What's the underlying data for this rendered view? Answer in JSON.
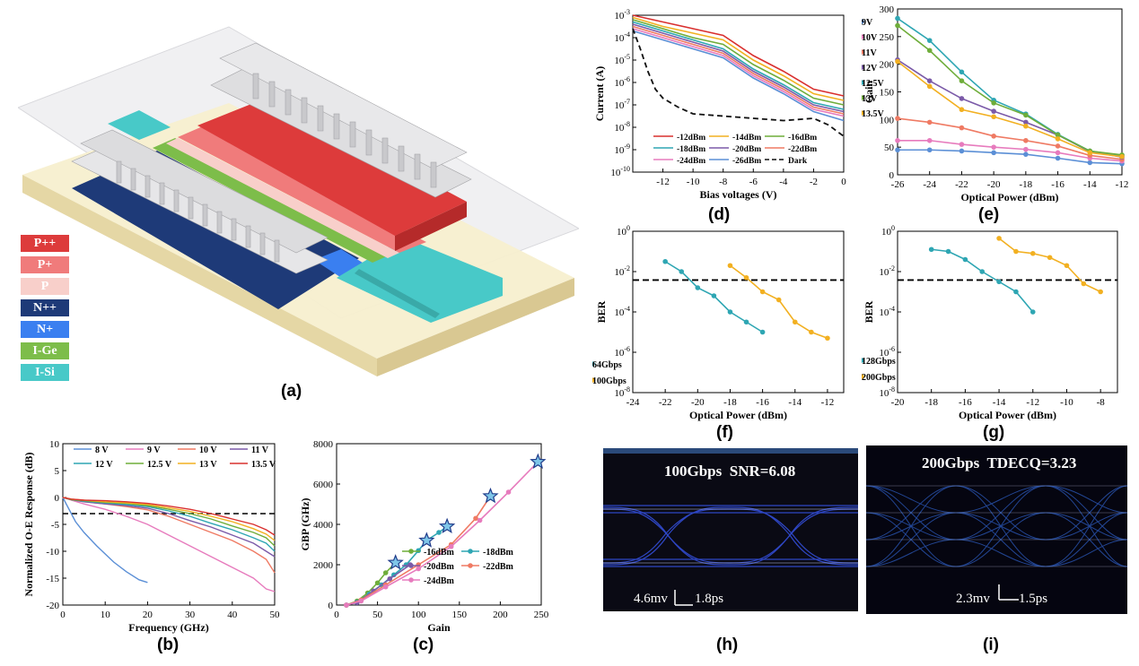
{
  "figure": {
    "captions": {
      "a": "(a)",
      "b": "(b)",
      "c": "(c)",
      "d": "(d)",
      "e": "(e)",
      "f": "(f)",
      "g": "(g)",
      "h": "(h)",
      "i": "(i)"
    },
    "layer_legend": [
      {
        "label": "P++",
        "color": "#dd3b3b"
      },
      {
        "label": "P+",
        "color": "#f07b7b"
      },
      {
        "label": "P",
        "color": "#f8cfca"
      },
      {
        "label": "N++",
        "color": "#1e3a78"
      },
      {
        "label": "N+",
        "color": "#3a7ff0"
      },
      {
        "label": "I-Ge",
        "color": "#7dbd4a"
      },
      {
        "label": "I-Si",
        "color": "#48c9c8"
      }
    ],
    "eye_h": {
      "title": "100Gbps  SNR=6.08",
      "v_scale": "4.6mv",
      "t_scale": "1.8ps"
    },
    "eye_i": {
      "title": "200Gbps  TDECQ=3.23",
      "v_scale": "2.3mv",
      "t_scale": "1.5ps"
    }
  },
  "chart_data": [
    {
      "id": "b",
      "type": "line",
      "xlabel": "Frequency (GHz)",
      "ylabel": "Normalized O-E Response (dB)",
      "xlim": [
        0,
        50
      ],
      "ylim": [
        -20,
        10
      ],
      "xticks": [
        0,
        10,
        20,
        30,
        40,
        50
      ],
      "yticks": [
        -20,
        -15,
        -10,
        -5,
        0,
        5,
        10
      ],
      "reference_line_db": -3,
      "series": [
        {
          "name": "8 V",
          "color": "#5b8fd6",
          "x": [
            0,
            1,
            2,
            3,
            5,
            8,
            10,
            12,
            15,
            18,
            20
          ],
          "y": [
            0,
            -1.5,
            -3,
            -4.5,
            -6.5,
            -9,
            -10.5,
            -12,
            -13.8,
            -15.3,
            -15.8
          ]
        },
        {
          "name": "9 V",
          "color": "#e77bbd",
          "x": [
            0,
            2,
            5,
            10,
            15,
            20,
            25,
            30,
            35,
            40,
            45,
            48,
            50
          ],
          "y": [
            0,
            -0.5,
            -1.2,
            -2.2,
            -3.5,
            -5,
            -7,
            -9,
            -11,
            -13,
            -15,
            -17,
            -17.5
          ]
        },
        {
          "name": "10 V",
          "color": "#ef7a63",
          "x": [
            0,
            2,
            5,
            10,
            15,
            20,
            25,
            30,
            35,
            40,
            45,
            48,
            50
          ],
          "y": [
            0,
            -0.4,
            -0.8,
            -1.2,
            -1.7,
            -2.3,
            -3.5,
            -5,
            -6.5,
            -8,
            -10,
            -11.5,
            -14
          ]
        },
        {
          "name": "11 V",
          "color": "#7b5aa8",
          "x": [
            0,
            2,
            5,
            10,
            15,
            20,
            25,
            30,
            35,
            40,
            45,
            48,
            50
          ],
          "y": [
            0,
            -0.4,
            -0.8,
            -1.2,
            -1.5,
            -2,
            -3,
            -4.3,
            -5.5,
            -7,
            -8.5,
            -10,
            -11
          ]
        },
        {
          "name": "12 V",
          "color": "#2ea6b3",
          "x": [
            0,
            2,
            5,
            10,
            15,
            20,
            25,
            30,
            35,
            40,
            45,
            48,
            50
          ],
          "y": [
            0,
            -0.4,
            -0.7,
            -1,
            -1.3,
            -1.7,
            -2.5,
            -3.5,
            -4.8,
            -6,
            -7.5,
            -8.5,
            -10
          ]
        },
        {
          "name": "12.5 V",
          "color": "#6fad3a",
          "x": [
            0,
            2,
            5,
            10,
            15,
            20,
            25,
            30,
            35,
            40,
            45,
            48,
            50
          ],
          "y": [
            0,
            -0.4,
            -0.6,
            -0.9,
            -1.1,
            -1.5,
            -2.2,
            -3,
            -4,
            -5.3,
            -6.5,
            -7.5,
            -9
          ]
        },
        {
          "name": "13 V",
          "color": "#f2b021",
          "x": [
            0,
            2,
            5,
            10,
            15,
            20,
            25,
            30,
            35,
            40,
            45,
            48,
            50
          ],
          "y": [
            0,
            -0.3,
            -0.5,
            -0.8,
            -1,
            -1.3,
            -1.9,
            -2.6,
            -3.5,
            -4.5,
            -5.8,
            -6.8,
            -8
          ]
        },
        {
          "name": "13.5 V",
          "color": "#d9302f",
          "x": [
            0,
            2,
            5,
            10,
            15,
            20,
            25,
            30,
            35,
            40,
            45,
            48,
            50
          ],
          "y": [
            0,
            -0.3,
            -0.5,
            -0.6,
            -0.8,
            -1.1,
            -1.6,
            -2.2,
            -3,
            -4,
            -5,
            -6,
            -7
          ]
        }
      ]
    },
    {
      "id": "c",
      "type": "line",
      "xlabel": "Gain",
      "ylabel": "GBP (GHz)",
      "xlim": [
        0,
        250
      ],
      "ylim": [
        0,
        8000
      ],
      "xticks": [
        0,
        50,
        100,
        150,
        200,
        250
      ],
      "yticks": [
        0,
        2000,
        4000,
        6000,
        8000
      ],
      "series": [
        {
          "name": "-16dBm",
          "color": "#6fad3a",
          "x": [
            12,
            25,
            38,
            50,
            60,
            72
          ],
          "y": [
            0,
            200,
            600,
            1100,
            1600,
            2100
          ]
        },
        {
          "name": "-18dBm",
          "color": "#2ea6b3",
          "x": [
            12,
            25,
            40,
            55,
            70,
            85,
            100,
            110,
            125,
            135
          ],
          "y": [
            0,
            150,
            550,
            1000,
            1500,
            2000,
            2700,
            3200,
            3600,
            3900
          ]
        },
        {
          "name": "-20dBm",
          "color": "#7b5aa8",
          "x": [
            12,
            25,
            45,
            65,
            90
          ],
          "y": [
            0,
            120,
            700,
            1300,
            2000
          ]
        },
        {
          "name": "-22dBm",
          "color": "#ef7a63",
          "x": [
            12,
            30,
            60,
            100,
            140,
            170,
            188
          ],
          "y": [
            0,
            250,
            1000,
            2000,
            3000,
            4300,
            5400
          ]
        },
        {
          "name": "-24dBm",
          "color": "#e77bbd",
          "x": [
            12,
            30,
            60,
            100,
            140,
            175,
            210,
            246
          ],
          "y": [
            0,
            200,
            900,
            1800,
            2900,
            4200,
            5600,
            7100
          ]
        }
      ],
      "star_markers_x": [
        72,
        110,
        135,
        188,
        246
      ],
      "star_markers_y": [
        2100,
        3200,
        3900,
        5400,
        7100
      ]
    },
    {
      "id": "d",
      "type": "line",
      "xlabel": "Bias voltages (V)",
      "ylabel": "Current (A)",
      "xlim": [
        -14,
        0
      ],
      "ylog": true,
      "ylim_exp": [
        -10,
        -3
      ],
      "xticks": [
        -12,
        -10,
        -8,
        -6,
        -4,
        -2,
        0
      ],
      "series": [
        {
          "name": "-12dBm",
          "color": "#d9302f",
          "x": [
            -14,
            -12,
            -10,
            -8,
            -6,
            -4,
            -2,
            0
          ],
          "y": [
            -3,
            -3.3,
            -3.6,
            -3.9,
            -4.8,
            -5.5,
            -6.3,
            -6.6
          ]
        },
        {
          "name": "-14dBm",
          "color": "#f2b021",
          "x": [
            -14,
            -12,
            -10,
            -8,
            -6,
            -4,
            -2,
            0
          ],
          "y": [
            -3.1,
            -3.5,
            -3.8,
            -4.1,
            -5,
            -5.7,
            -6.5,
            -6.8
          ]
        },
        {
          "name": "-16dBm",
          "color": "#6fad3a",
          "x": [
            -14,
            -12,
            -10,
            -8,
            -6,
            -4,
            -2,
            0
          ],
          "y": [
            -3.2,
            -3.6,
            -4,
            -4.3,
            -5.2,
            -5.9,
            -6.7,
            -7
          ]
        },
        {
          "name": "-18dBm",
          "color": "#2ea6b3",
          "x": [
            -14,
            -12,
            -10,
            -8,
            -6,
            -4,
            -2,
            0
          ],
          "y": [
            -3.3,
            -3.7,
            -4.1,
            -4.5,
            -5.4,
            -6.1,
            -6.9,
            -7.2
          ]
        },
        {
          "name": "-20dBm",
          "color": "#7b5aa8",
          "x": [
            -14,
            -12,
            -10,
            -8,
            -6,
            -4,
            -2,
            0
          ],
          "y": [
            -3.4,
            -3.8,
            -4.2,
            -4.6,
            -5.5,
            -6.2,
            -7,
            -7.3
          ]
        },
        {
          "name": "-22dBm",
          "color": "#ef7a63",
          "x": [
            -14,
            -12,
            -10,
            -8,
            -6,
            -4,
            -2,
            0
          ],
          "y": [
            -3.5,
            -3.9,
            -4.3,
            -4.7,
            -5.6,
            -6.3,
            -7.1,
            -7.4
          ]
        },
        {
          "name": "-24dBm",
          "color": "#e77bbd",
          "x": [
            -14,
            -12,
            -10,
            -8,
            -6,
            -4,
            -2,
            0
          ],
          "y": [
            -3.6,
            -4,
            -4.4,
            -4.8,
            -5.7,
            -6.4,
            -7.2,
            -7.5
          ]
        },
        {
          "name": "-26dBm",
          "color": "#5b8fd6",
          "x": [
            -14,
            -12,
            -10,
            -8,
            -6,
            -4,
            -2,
            0
          ],
          "y": [
            -3.7,
            -4.1,
            -4.5,
            -4.9,
            -5.8,
            -6.5,
            -7.3,
            -7.7
          ]
        },
        {
          "name": "Dark",
          "color": "#111111",
          "dashed": true,
          "x": [
            -14,
            -13.5,
            -13,
            -12.5,
            -12,
            -11,
            -10,
            -8,
            -6,
            -4,
            -2,
            -1,
            0
          ],
          "y": [
            -3.6,
            -4.5,
            -5.5,
            -6.3,
            -6.7,
            -7.1,
            -7.4,
            -7.5,
            -7.6,
            -7.7,
            -7.6,
            -7.9,
            -8.4
          ]
        }
      ]
    },
    {
      "id": "e",
      "type": "line",
      "xlabel": "Optical Power (dBm)",
      "ylabel": "Gain",
      "xlim": [
        -26,
        -12
      ],
      "ylim": [
        0,
        300
      ],
      "xticks": [
        -26,
        -24,
        -22,
        -20,
        -18,
        -16,
        -14,
        -12
      ],
      "yticks": [
        0,
        50,
        100,
        150,
        200,
        250,
        300
      ],
      "x": [
        -26,
        -24,
        -22,
        -20,
        -18,
        -16,
        -14,
        -12
      ],
      "series": [
        {
          "name": "9V",
          "color": "#5b8fd6",
          "values": [
            45,
            45,
            43,
            40,
            37,
            30,
            22,
            20
          ]
        },
        {
          "name": "10V",
          "color": "#e77bbd",
          "values": [
            62,
            62,
            55,
            50,
            46,
            40,
            30,
            25
          ]
        },
        {
          "name": "11V",
          "color": "#ef7a63",
          "values": [
            102,
            95,
            85,
            70,
            62,
            52,
            35,
            28
          ]
        },
        {
          "name": "12V",
          "color": "#7b5aa8",
          "values": [
            208,
            170,
            138,
            115,
            95,
            72,
            42,
            32
          ]
        },
        {
          "name": "12.5V",
          "color": "#2ea6b3",
          "values": [
            283,
            243,
            186,
            135,
            110,
            73,
            43,
            35
          ]
        },
        {
          "name": "13V",
          "color": "#6fad3a",
          "values": [
            270,
            225,
            170,
            130,
            108,
            72,
            43,
            36
          ]
        },
        {
          "name": "13.5V",
          "color": "#f2b021",
          "values": [
            205,
            160,
            118,
            105,
            88,
            65,
            40,
            33
          ]
        }
      ]
    },
    {
      "id": "f",
      "type": "line",
      "xlabel": "Optical Power (dBm)",
      "ylabel": "BER",
      "xlim": [
        -24,
        -11
      ],
      "ylog": true,
      "ylim_exp": [
        -8,
        0
      ],
      "xticks": [
        -24,
        -22,
        -20,
        -18,
        -16,
        -14,
        -12
      ],
      "threshold_exp": -2.42,
      "series": [
        {
          "name": "64Gbps",
          "color": "#2ea6b3",
          "x": [
            -22,
            -21,
            -20,
            -19,
            -18,
            -17,
            -16
          ],
          "y": [
            -1.5,
            -2,
            -2.8,
            -3.2,
            -4,
            -4.5,
            -5
          ]
        },
        {
          "name": "100Gbps",
          "color": "#f2b021",
          "x": [
            -18,
            -17,
            -16,
            -15,
            -14,
            -13,
            -12
          ],
          "y": [
            -1.7,
            -2.3,
            -3,
            -3.4,
            -4.5,
            -5,
            -5.3
          ]
        }
      ]
    },
    {
      "id": "g",
      "type": "line",
      "xlabel": "Optical Power (dBm)",
      "ylabel": "BER",
      "xlim": [
        -20,
        -7
      ],
      "ylog": true,
      "ylim_exp": [
        -8,
        0
      ],
      "xticks": [
        -20,
        -18,
        -16,
        -14,
        -12,
        -10,
        -8
      ],
      "threshold_exp": -2.42,
      "series": [
        {
          "name": "128Gbps",
          "color": "#2ea6b3",
          "x": [
            -18,
            -17,
            -16,
            -15,
            -14,
            -13,
            -12
          ],
          "y": [
            -0.9,
            -1,
            -1.4,
            -2,
            -2.5,
            -3,
            -4
          ]
        },
        {
          "name": "200Gbps",
          "color": "#f2b021",
          "x": [
            -14,
            -13,
            -12,
            -11,
            -10,
            -9,
            -8
          ],
          "y": [
            -0.35,
            -1,
            -1.1,
            -1.3,
            -1.7,
            -2.6,
            -3
          ]
        }
      ]
    }
  ]
}
